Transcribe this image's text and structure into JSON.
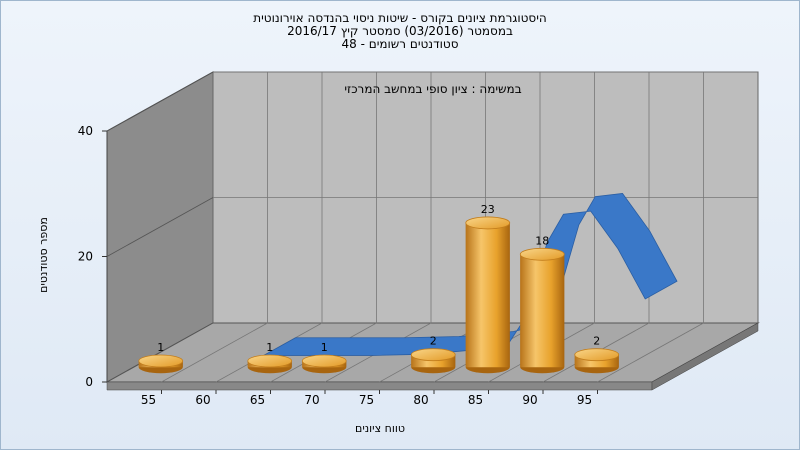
{
  "chart_data": {
    "type": "bar",
    "title_lines": [
      "היסטוגרמת ציונים בקורס - שיטות ניסוי בהנדסה אוירונוטית",
      "במסמטר   (03/2016)   סמסטר קיץ 2016/17",
      "סטודנטים רשומים - 48"
    ],
    "subtitle": "במשימה : ציון סופי במחשב המרכזי",
    "xlabel": "טווח ציונים",
    "ylabel": "מספר סטודנטים",
    "x_ticks": [
      "55",
      "60",
      "65",
      "70",
      "75",
      "80",
      "85",
      "90",
      "95"
    ],
    "y_ticks": [
      "0",
      "20",
      "40"
    ],
    "ylim": [
      0,
      40
    ],
    "series": [
      {
        "type": "bar",
        "x": [
          52.5,
          62.5,
          67.5,
          77.5,
          82.5,
          87.5,
          92.5
        ],
        "values": [
          1,
          1,
          1,
          2,
          23,
          18,
          2
        ],
        "labels": [
          "1",
          "1",
          "1",
          "2",
          "23",
          "18",
          "2"
        ]
      },
      {
        "type": "curve",
        "x": [
          60,
          65,
          70,
          75,
          80,
          82.5,
          84,
          85,
          86,
          87.5,
          90,
          92.5,
          95
        ],
        "values": [
          0,
          0,
          0,
          0.2,
          1,
          2,
          6,
          12,
          18,
          22.5,
          23,
          17,
          9
        ]
      }
    ],
    "grid": true,
    "colors": {
      "bar": "#e8a22c",
      "curve": "#3a78c8",
      "wall_back": "#bdbdbd",
      "wall_side": "#8a8a8a",
      "floor": "#a9a9a9"
    }
  }
}
